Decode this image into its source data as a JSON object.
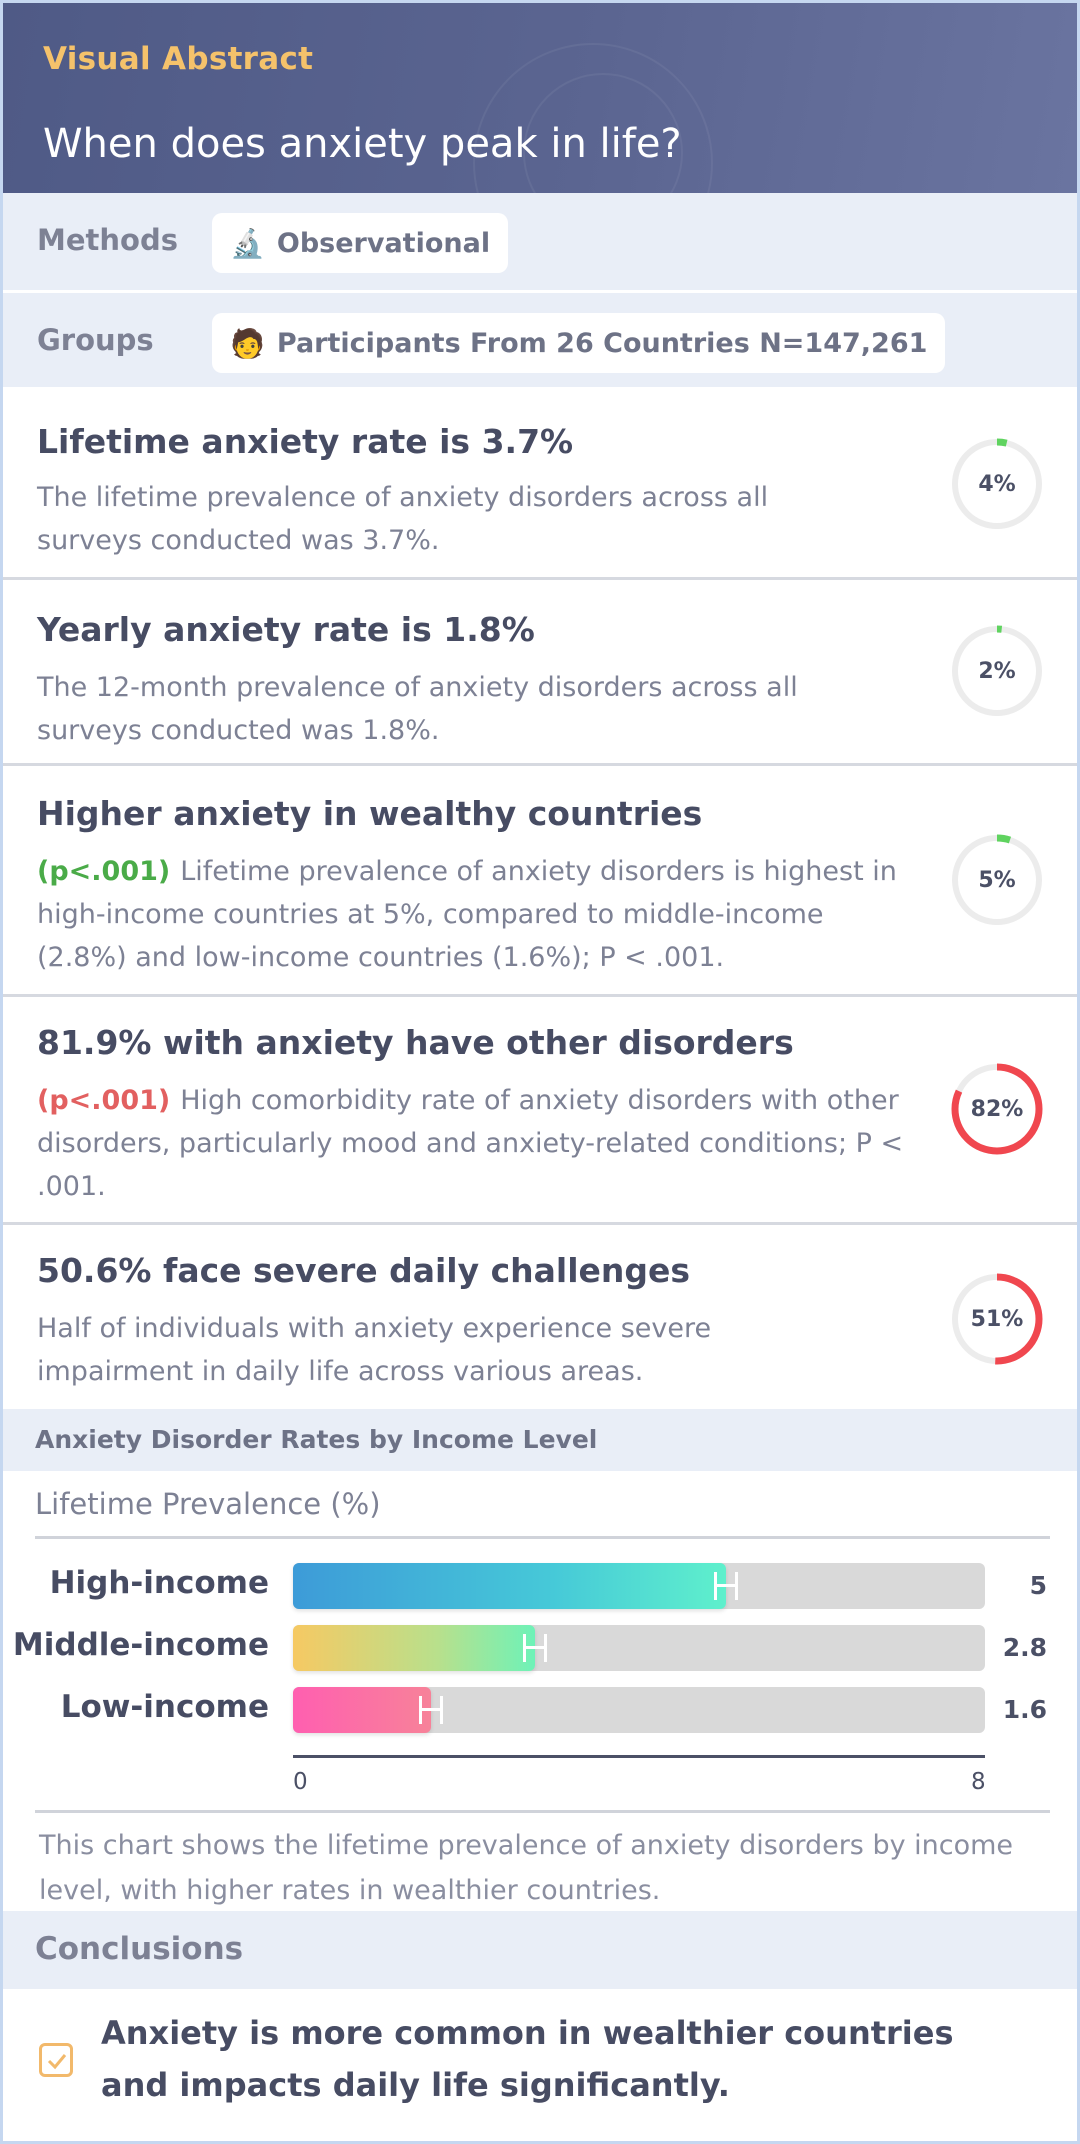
{
  "header": {
    "kicker": "Visual Abstract",
    "title": "When does anxiety peak in life?"
  },
  "methods": {
    "label": "Methods",
    "icon": "microscope-icon",
    "value": "Observational"
  },
  "groups": {
    "label": "Groups",
    "icon": "person-icon",
    "value": "Participants From 26 Countries N=147,261"
  },
  "findings": [
    {
      "title": "Lifetime anxiety rate is 3.7%",
      "pvalue": "",
      "text": "The lifetime prevalence of anxiety disorders across all surveys conducted was 3.7%.",
      "ring_label": "4%",
      "ring_fraction": 0.037,
      "ring_color": "#5fd35f"
    },
    {
      "title": "Yearly anxiety rate is 1.8%",
      "pvalue": "",
      "text": "The 12-month prevalence of anxiety disorders across all surveys conducted was 1.8%.",
      "ring_label": "2%",
      "ring_fraction": 0.018,
      "ring_color": "#5fd35f"
    },
    {
      "title": "Higher anxiety in wealthy countries",
      "pvalue": "(p<.001)",
      "text": "Lifetime prevalence of anxiety disorders is highest in high-income countries at 5%, compared to middle-income (2.8%) and low-income countries (1.6%); P < .001.",
      "ring_label": "5%",
      "ring_fraction": 0.05,
      "ring_color": "#5fd35f"
    },
    {
      "title": "81.9% with anxiety have other disorders",
      "pvalue": "(p<.001)",
      "text": "High comorbidity rate of anxiety disorders with other disorders, particularly mood and anxiety-related conditions; P < .001.",
      "ring_label": "82%",
      "ring_fraction": 0.819,
      "ring_color": "#f0474f"
    },
    {
      "title": "50.6% face severe daily challenges",
      "pvalue": "",
      "text": "Half of individuals with anxiety experience severe impairment in daily life across various areas.",
      "ring_label": "51%",
      "ring_fraction": 0.506,
      "ring_color": "#f0474f"
    }
  ],
  "chart_section": {
    "heading": "Anxiety Disorder Rates by Income Level",
    "caption": "This chart shows the lifetime prevalence of anxiety disorders by income level, with higher rates in wealthier countries."
  },
  "chart_data": {
    "type": "bar",
    "orientation": "horizontal",
    "title": "Lifetime Prevalence (%)",
    "categories": [
      "High-income",
      "Middle-income",
      "Low-income"
    ],
    "values": [
      5,
      2.8,
      1.6
    ],
    "value_labels": [
      "5",
      "2.8",
      "1.6"
    ],
    "xlim": [
      0,
      8
    ],
    "x_tick_labels": [
      "0",
      "8"
    ],
    "error_bars": true,
    "grid": false
  },
  "conclusions": {
    "label": "Conclusions",
    "text": "Anxiety is more common in wealthier countries and impacts daily life significantly."
  },
  "colors": {
    "header_bg": "#56608c",
    "kicker": "#f5c26b",
    "section_bg": "#e9eef7",
    "green_p": "#4aab48",
    "red_p": "#e26060",
    "check": "#f2b96b"
  }
}
